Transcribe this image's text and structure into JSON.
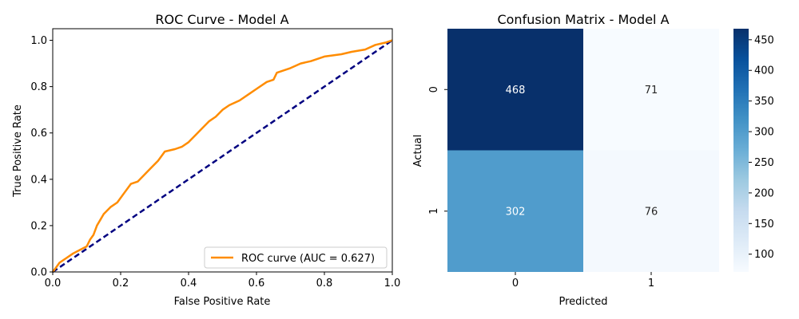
{
  "chart_data": [
    {
      "type": "line",
      "title": "ROC Curve - Model A",
      "xlabel": "False Positive Rate",
      "ylabel": "True Positive Rate",
      "xlim": [
        0,
        1
      ],
      "ylim": [
        0,
        1.05
      ],
      "xticks": [
        "0.0",
        "0.2",
        "0.4",
        "0.6",
        "0.8",
        "1.0"
      ],
      "yticks": [
        "0.0",
        "0.2",
        "0.4",
        "0.6",
        "0.8",
        "1.0"
      ],
      "legend_position": "bottom-right",
      "grid": false,
      "series": [
        {
          "name": "ROC curve (AUC = 0.627)",
          "color": "#ff8c00",
          "style": "solid",
          "x": [
            0.0,
            0.01,
            0.02,
            0.04,
            0.06,
            0.08,
            0.1,
            0.11,
            0.12,
            0.13,
            0.15,
            0.17,
            0.19,
            0.21,
            0.23,
            0.25,
            0.27,
            0.29,
            0.31,
            0.33,
            0.36,
            0.38,
            0.4,
            0.42,
            0.44,
            0.46,
            0.48,
            0.5,
            0.52,
            0.55,
            0.58,
            0.6,
            0.63,
            0.65,
            0.66,
            0.68,
            0.7,
            0.73,
            0.76,
            0.8,
            0.85,
            0.88,
            0.92,
            0.95,
            0.98,
            1.0
          ],
          "y": [
            0.0,
            0.02,
            0.04,
            0.06,
            0.08,
            0.095,
            0.11,
            0.14,
            0.16,
            0.2,
            0.25,
            0.28,
            0.3,
            0.34,
            0.38,
            0.39,
            0.42,
            0.45,
            0.48,
            0.52,
            0.53,
            0.54,
            0.56,
            0.59,
            0.62,
            0.65,
            0.67,
            0.7,
            0.72,
            0.74,
            0.77,
            0.79,
            0.82,
            0.83,
            0.86,
            0.87,
            0.88,
            0.9,
            0.91,
            0.93,
            0.94,
            0.95,
            0.96,
            0.98,
            0.99,
            1.0
          ]
        },
        {
          "name": "",
          "color": "#000080",
          "style": "dashed",
          "x": [
            0,
            1
          ],
          "y": [
            0,
            1
          ]
        }
      ]
    },
    {
      "type": "heatmap",
      "title": "Confusion Matrix - Model A",
      "xlabel": "Predicted",
      "ylabel": "Actual",
      "x_categories": [
        "0",
        "1"
      ],
      "y_categories": [
        "0",
        "1"
      ],
      "values": [
        [
          468,
          71
        ],
        [
          302,
          76
        ]
      ],
      "colormap": "Blues",
      "colorbar": {
        "min": 71,
        "max": 468,
        "ticks": [
          "100",
          "150",
          "200",
          "250",
          "300",
          "350",
          "400",
          "450"
        ]
      }
    }
  ]
}
